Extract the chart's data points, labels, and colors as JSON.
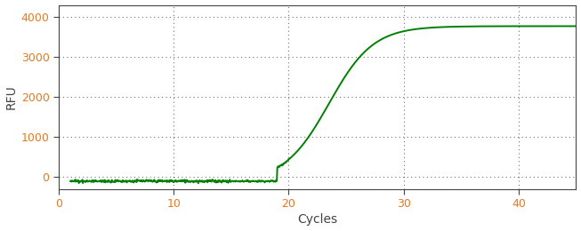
{
  "xlabel": "Cycles",
  "ylabel": "RFU",
  "xlim": [
    0,
    45
  ],
  "ylim": [
    -300,
    4300
  ],
  "yticks": [
    0,
    1000,
    2000,
    3000,
    4000
  ],
  "xticks": [
    0,
    10,
    20,
    30,
    40
  ],
  "line_color": "#008000",
  "line_width": 1.4,
  "background_color": "#ffffff",
  "spine_color": "#444444",
  "grid_color": "#333333",
  "tick_label_color": "#e87820",
  "axis_label_color": "#333333",
  "xlabel_color": "#444444",
  "sigmoid_L": 3870,
  "sigmoid_k": 0.52,
  "sigmoid_x0": 23.5,
  "x_start": 1,
  "x_end": 45,
  "baseline": -100,
  "figsize": [
    6.53,
    2.6
  ],
  "dpi": 100
}
